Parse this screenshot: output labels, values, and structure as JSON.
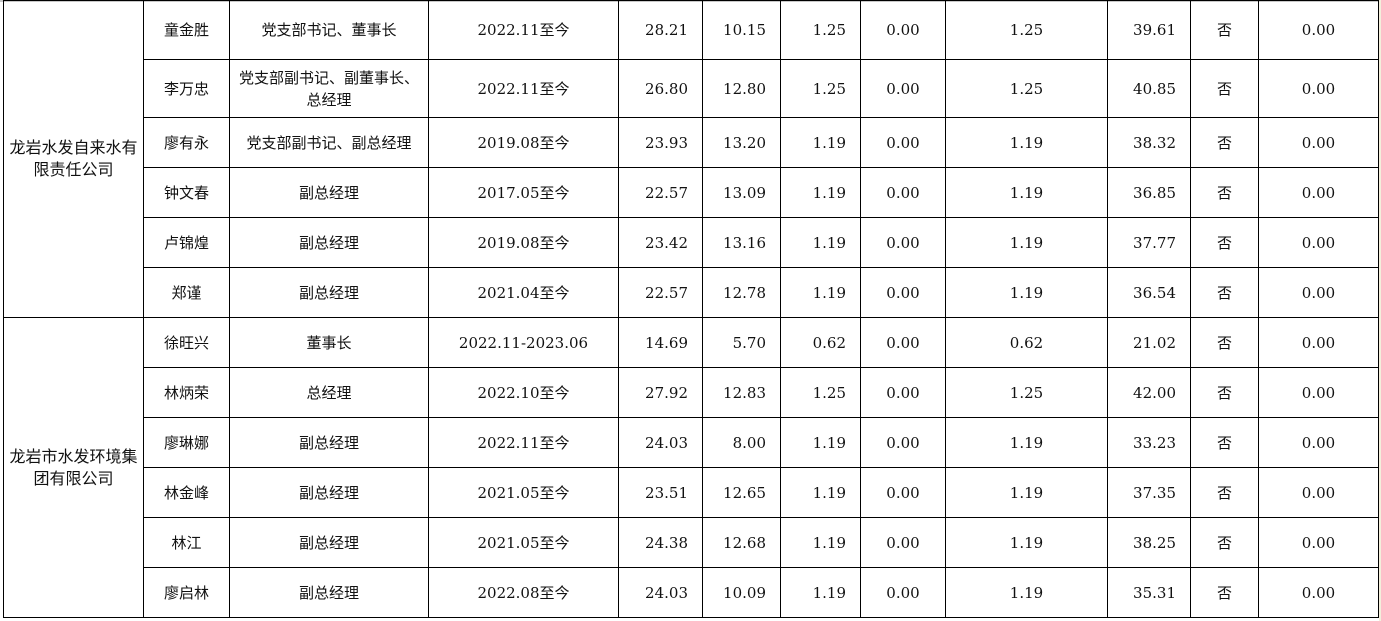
{
  "groups": [
    {
      "company": "龙岩水发自来水有限责任公司",
      "rows": [
        [
          "童金胜",
          "党支部书记、董事长",
          "2022.11至今",
          "28.21",
          "10.15",
          "1.25",
          "0.00",
          "1.25",
          "39.61",
          "否",
          "0.00"
        ],
        [
          "李万忠",
          "党支部副书记、副董事长、总经理",
          "2022.11至今",
          "26.80",
          "12.80",
          "1.25",
          "0.00",
          "1.25",
          "40.85",
          "否",
          "0.00"
        ],
        [
          "廖有永",
          "党支部副书记、副总经理",
          "2019.08至今",
          "23.93",
          "13.20",
          "1.19",
          "0.00",
          "1.19",
          "38.32",
          "否",
          "0.00"
        ],
        [
          "钟文春",
          "副总经理",
          "2017.05至今",
          "22.57",
          "13.09",
          "1.19",
          "0.00",
          "1.19",
          "36.85",
          "否",
          "0.00"
        ],
        [
          "卢锦煌",
          "副总经理",
          "2019.08至今",
          "23.42",
          "13.16",
          "1.19",
          "0.00",
          "1.19",
          "37.77",
          "否",
          "0.00"
        ],
        [
          "郑谨",
          "副总经理",
          "2021.04至今",
          "22.57",
          "12.78",
          "1.19",
          "0.00",
          "1.19",
          "36.54",
          "否",
          "0.00"
        ]
      ]
    },
    {
      "company": "龙岩市水发环境集团有限公司",
      "rows": [
        [
          "徐旺兴",
          "董事长",
          "2022.11-2023.06",
          "14.69",
          "5.70",
          "0.62",
          "0.00",
          "0.62",
          "21.02",
          "否",
          "0.00"
        ],
        [
          "林炳荣",
          "总经理",
          "2022.10至今",
          "27.92",
          "12.83",
          "1.25",
          "0.00",
          "1.25",
          "42.00",
          "否",
          "0.00"
        ],
        [
          "廖琳娜",
          "副总经理",
          "2022.11至今",
          "24.03",
          "8.00",
          "1.19",
          "0.00",
          "1.19",
          "33.23",
          "否",
          "0.00"
        ],
        [
          "林金峰",
          "副总经理",
          "2021.05至今",
          "23.51",
          "12.65",
          "1.19",
          "0.00",
          "1.19",
          "37.35",
          "否",
          "0.00"
        ],
        [
          "林江",
          "副总经理",
          "2021.05至今",
          "24.38",
          "12.68",
          "1.19",
          "0.00",
          "1.19",
          "38.25",
          "否",
          "0.00"
        ],
        [
          "廖启林",
          "副总经理",
          "2022.08至今",
          "24.03",
          "10.09",
          "1.19",
          "0.00",
          "1.19",
          "35.31",
          "否",
          "0.00"
        ]
      ]
    }
  ]
}
